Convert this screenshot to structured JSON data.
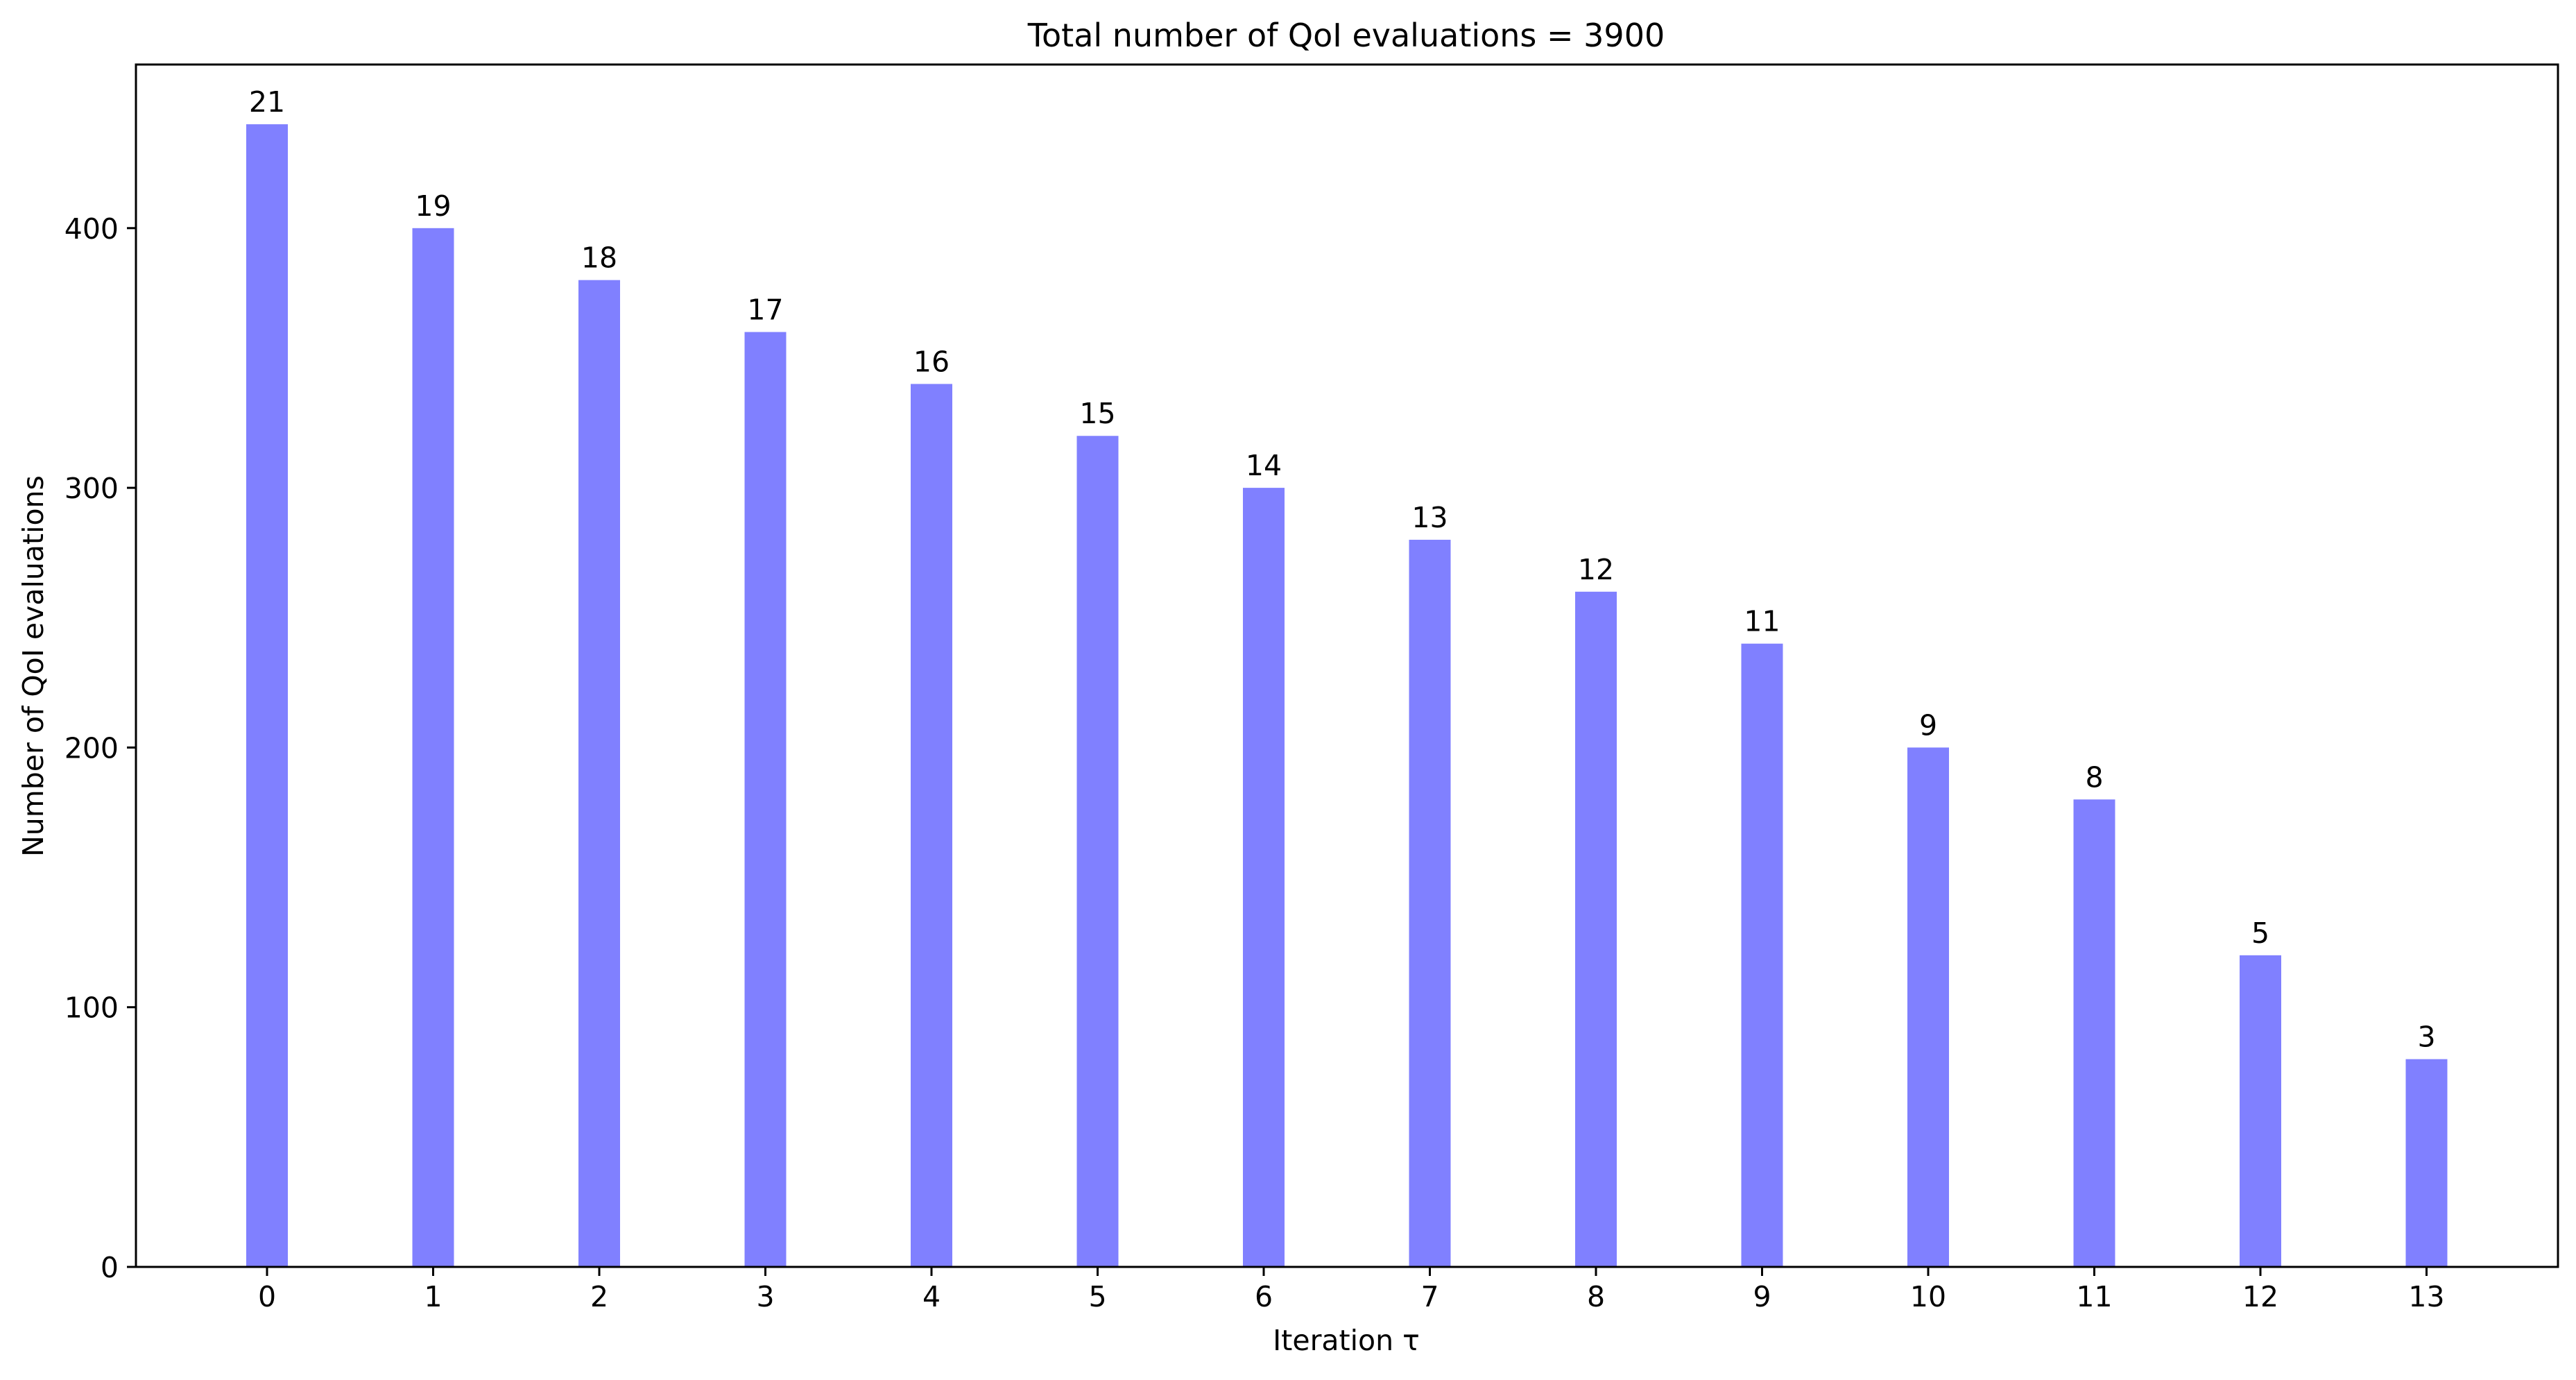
{
  "chart_data": {
    "type": "bar",
    "title": "Total number of QoI evaluations = 3900",
    "xlabel": "Iteration τ",
    "ylabel": "Number of QoI evaluations",
    "categories": [
      "0",
      "1",
      "2",
      "3",
      "4",
      "5",
      "6",
      "7",
      "8",
      "9",
      "10",
      "11",
      "12",
      "13"
    ],
    "values": [
      440,
      400,
      380,
      360,
      340,
      320,
      300,
      280,
      260,
      240,
      200,
      180,
      120,
      80
    ],
    "bar_labels": [
      "21",
      "19",
      "18",
      "17",
      "16",
      "15",
      "14",
      "13",
      "12",
      "11",
      "9",
      "8",
      "5",
      "3"
    ],
    "yticks": [
      "0",
      "100",
      "200",
      "300",
      "400"
    ],
    "ylim": [
      0,
      463
    ],
    "bar_color": "#8080ff",
    "grid": false,
    "legend": "none"
  }
}
